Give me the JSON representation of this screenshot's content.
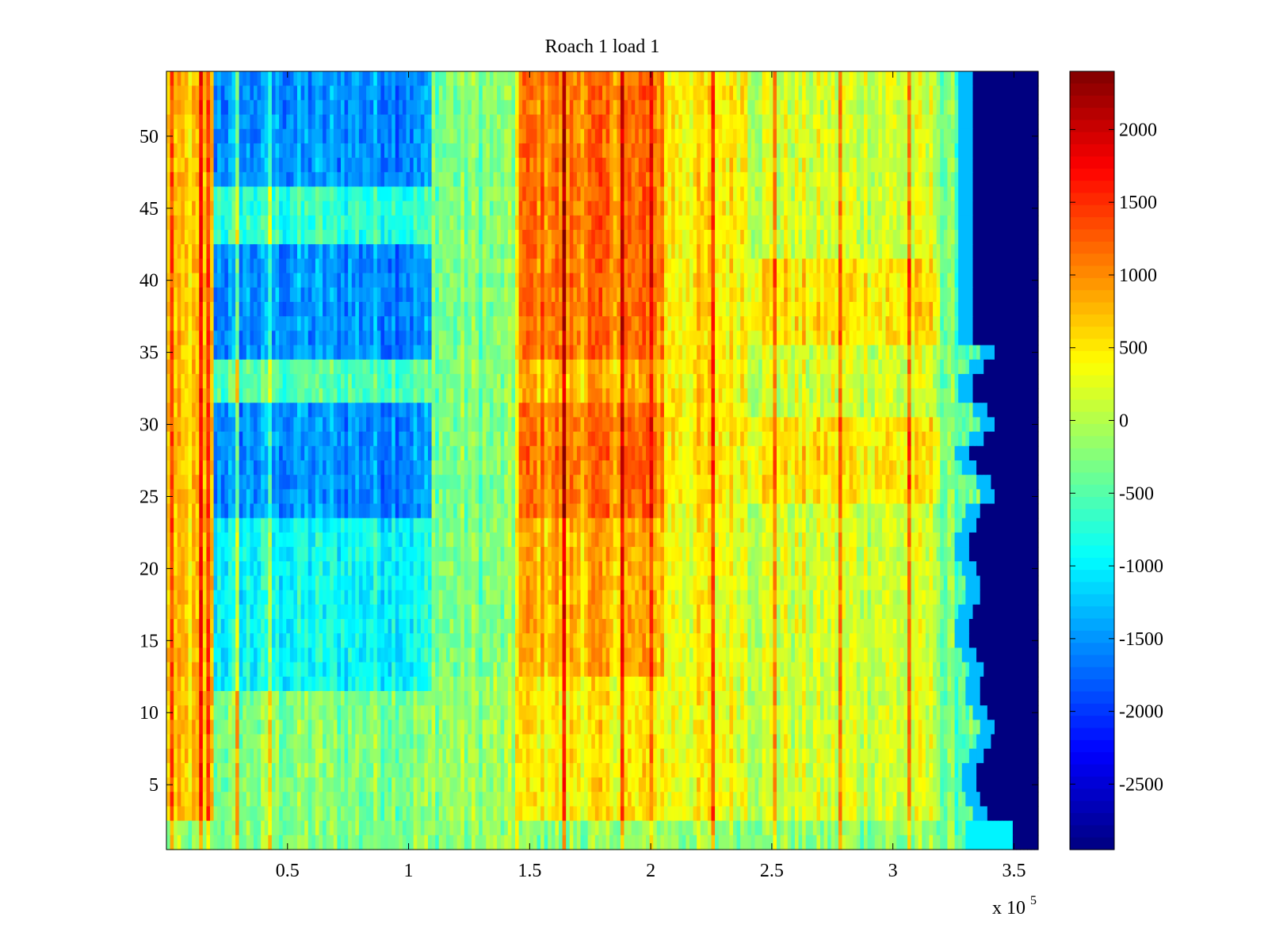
{
  "chart_data": {
    "type": "heatmap",
    "title": "Roach 1 load 1",
    "xlabel": "",
    "ylabel": "",
    "x_exponent_label": "x 10",
    "x_exponent_power": "5",
    "xlim": [
      0,
      3.6
    ],
    "ylim": [
      0.5,
      54.5
    ],
    "x_ticks": [
      0.5,
      1,
      1.5,
      2,
      2.5,
      3,
      3.5
    ],
    "x_tick_labels": [
      "0.5",
      "1",
      "1.5",
      "2",
      "2.5",
      "3",
      "3.5"
    ],
    "y_ticks": [
      5,
      10,
      15,
      20,
      25,
      30,
      35,
      40,
      45,
      50
    ],
    "y_tick_labels": [
      "5",
      "10",
      "15",
      "20",
      "25",
      "30",
      "35",
      "40",
      "45",
      "50"
    ],
    "colorbar": {
      "colormap": "jet",
      "range": [
        -2950,
        2400
      ],
      "ticks": [
        2000,
        1500,
        1000,
        500,
        0,
        -500,
        -1000,
        -1500,
        -2000,
        -2500
      ],
      "tick_labels": [
        "2000",
        "1500",
        "1000",
        "500",
        "0",
        "-500",
        "-1000",
        "-1500",
        "-2000",
        "-2500"
      ]
    },
    "rows": 54,
    "x_range_values": [
      0,
      3.6
    ],
    "description_regions": [
      {
        "x": [
          0,
          0.02
        ],
        "y": [
          3,
          54
        ],
        "value": 1700
      },
      {
        "x": [
          0.12,
          0.17
        ],
        "y": [
          3,
          54
        ],
        "value": 1600
      },
      {
        "x": [
          0.25,
          1.1
        ],
        "y": [
          24,
          31
        ],
        "value": -2000
      },
      {
        "x": [
          0.25,
          1.1
        ],
        "y": [
          35,
          42
        ],
        "value": -1900
      },
      {
        "x": [
          0.25,
          1.1
        ],
        "y": [
          47,
          54
        ],
        "value": -1800
      },
      {
        "x": [
          1.45,
          2.05
        ],
        "y": [
          24,
          31
        ],
        "value": 1300
      },
      {
        "x": [
          1.45,
          2.05
        ],
        "y": [
          35,
          54
        ],
        "value": 1400
      },
      {
        "x": [
          3.32,
          3.6
        ],
        "y": [
          1,
          54
        ],
        "value": -2950
      }
    ]
  }
}
